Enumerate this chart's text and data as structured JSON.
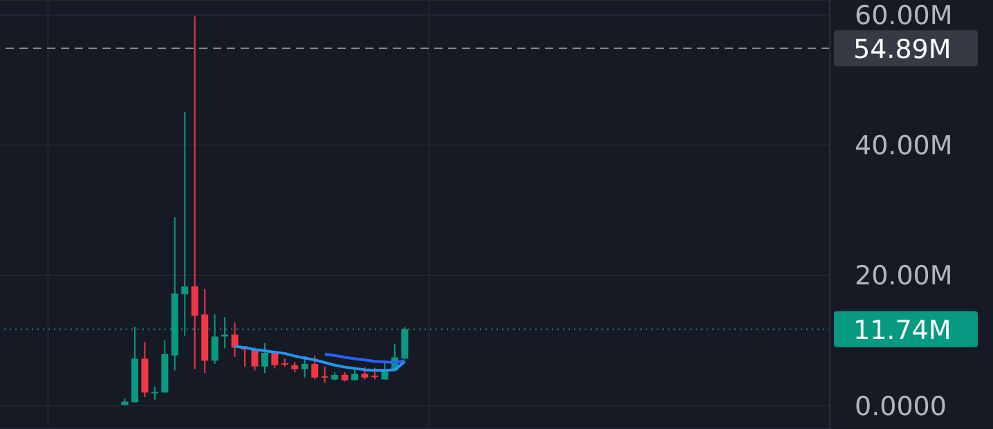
{
  "chart_data": {
    "type": "candlestick",
    "categories": [
      null,
      null,
      null,
      null,
      null,
      null,
      null,
      null,
      null,
      null,
      null,
      null,
      null,
      null,
      null,
      null,
      null,
      null,
      null,
      null,
      null,
      null,
      null,
      null,
      null,
      null,
      null,
      null,
      null,
      null,
      null,
      null,
      null,
      null,
      null,
      null,
      null,
      null,
      null,
      null,
      null,
      null,
      null,
      null,
      null,
      null,
      null,
      null,
      null,
      null,
      null,
      null,
      null,
      null,
      null,
      null,
      null,
      null,
      null,
      null,
      null,
      null,
      null,
      null,
      null,
      null,
      null,
      null,
      null,
      null,
      null,
      null,
      null,
      null,
      null,
      null,
      null,
      null,
      null,
      null,
      null,
      null,
      null
    ],
    "ohlc": [
      null,
      null,
      null,
      null,
      null,
      null,
      null,
      null,
      null,
      null,
      null,
      null,
      [
        0.1,
        1.1,
        0,
        0.6
      ],
      [
        0.5,
        12.1,
        0.5,
        7.2
      ],
      [
        7.2,
        9.8,
        1.3,
        2.0
      ],
      [
        2.0,
        2.9,
        0.9,
        2.1
      ],
      [
        2.0,
        10.0,
        2.0,
        7.9
      ],
      [
        7.7,
        28.9,
        5.4,
        17.2
      ],
      [
        17.1,
        45.1,
        10.7,
        18.3
      ],
      [
        18.3,
        59.8,
        5.6,
        13.8
      ],
      [
        14.0,
        17.9,
        5.0,
        6.9
      ],
      [
        6.9,
        14.0,
        6.4,
        10.6
      ],
      [
        10.6,
        13.6,
        8.8,
        10.9
      ],
      [
        10.9,
        12.8,
        7.5,
        8.9
      ],
      [
        9.1,
        9.1,
        6.0,
        8.6
      ],
      [
        8.7,
        8.9,
        5.4,
        6.0
      ],
      [
        6.0,
        9.6,
        5.0,
        8.1
      ],
      [
        8.1,
        8.1,
        5.7,
        6.2
      ],
      [
        6.5,
        7.2,
        6.0,
        6.3
      ],
      [
        6.2,
        6.7,
        5.1,
        5.6
      ],
      [
        5.6,
        7.6,
        4.3,
        6.4
      ],
      [
        6.4,
        7.7,
        4.0,
        4.3
      ],
      [
        4.5,
        6.0,
        3.5,
        4.4
      ],
      [
        4.0,
        5.1,
        3.9,
        4.7
      ],
      [
        4.7,
        5.1,
        3.7,
        3.9
      ],
      [
        3.9,
        5.9,
        3.9,
        4.9
      ],
      [
        4.9,
        5.9,
        4.0,
        4.3
      ],
      [
        4.6,
        5.8,
        4.0,
        4.4
      ],
      [
        4.0,
        6.6,
        4.0,
        5.6
      ],
      [
        5.4,
        9.5,
        5.4,
        7.4
      ],
      [
        7.2,
        12.1,
        7.2,
        11.74
      ],
      null,
      null,
      null,
      null,
      null,
      null,
      null,
      null,
      null,
      null,
      null,
      null,
      null,
      null,
      null,
      null,
      null,
      null,
      null,
      null,
      null,
      null,
      null,
      null,
      null,
      null,
      null,
      null,
      null,
      null,
      null,
      null,
      null,
      null,
      null,
      null,
      null,
      null,
      null,
      null,
      null,
      null
    ],
    "colors": [
      null,
      null,
      null,
      null,
      null,
      null,
      null,
      null,
      null,
      null,
      null,
      null,
      "#089981",
      "#089981",
      "#f23645",
      "#089981",
      "#089981",
      "#089981",
      "#089981",
      "#f23645",
      "#f23645",
      "#089981",
      "#089981",
      "#f23645",
      "#f23645",
      "#f23645",
      "#089981",
      "#f23645",
      "#f23645",
      "#f23645",
      "#089981",
      "#f23645",
      "#f23645",
      "#089981",
      "#f23645",
      "#089981",
      "#f23645",
      "#f23645",
      "#089981",
      "#089981",
      "#089981",
      null,
      null,
      null,
      null,
      null,
      null,
      null,
      null,
      null,
      null,
      null,
      null,
      null,
      null,
      null,
      null,
      null,
      null,
      null,
      null,
      null,
      null,
      null,
      null,
      null,
      null,
      null,
      null,
      null,
      null,
      null,
      null,
      null,
      null,
      null,
      null,
      null,
      null,
      null,
      null,
      null,
      null
    ],
    "series": [
      {
        "type": "line",
        "color": "#2196f3",
        "values": [
          null,
          null,
          null,
          null,
          null,
          null,
          null,
          null,
          null,
          null,
          null,
          null,
          null,
          null,
          null,
          null,
          null,
          null,
          null,
          null,
          null,
          null,
          null,
          9.1,
          8.9,
          8.6,
          8.4,
          8.2,
          8.0,
          7.6,
          7.3,
          7.0,
          6.6,
          6.2,
          5.9,
          5.7,
          5.5,
          5.4,
          5.4,
          5.5,
          6.8,
          null,
          null,
          null,
          null,
          null,
          null,
          null,
          null,
          null,
          null,
          null,
          null,
          null,
          null,
          null,
          null,
          null,
          null,
          null,
          null,
          null,
          null,
          null,
          null,
          null,
          null,
          null,
          null,
          null,
          null,
          null,
          null,
          null,
          null,
          null,
          null,
          null,
          null,
          null,
          null,
          null,
          null
        ]
      },
      {
        "type": "line",
        "color": "#2962ff",
        "values": [
          null,
          null,
          null,
          null,
          null,
          null,
          null,
          null,
          null,
          null,
          null,
          null,
          null,
          null,
          null,
          null,
          null,
          null,
          null,
          null,
          null,
          null,
          null,
          null,
          null,
          null,
          null,
          null,
          null,
          null,
          null,
          null,
          7.9,
          7.7,
          7.4,
          7.2,
          7.0,
          6.8,
          6.7,
          6.6,
          6.9,
          null,
          null,
          null,
          null,
          null,
          null,
          null,
          null,
          null,
          null,
          null,
          null,
          null,
          null,
          null,
          null,
          null,
          null,
          null,
          null,
          null,
          null,
          null,
          null,
          null,
          null,
          null,
          null,
          null,
          null,
          null,
          null,
          null,
          null,
          null,
          null,
          null,
          null,
          null,
          null,
          null,
          null
        ]
      }
    ],
    "ylim": [
      -3.6,
      62.3
    ],
    "yticks": [
      {
        "value": 0,
        "label": "0.0000"
      },
      {
        "value": 20,
        "label": "20.00M"
      },
      {
        "value": 40,
        "label": "40.00M"
      },
      {
        "value": 60,
        "label": "60.00M"
      }
    ],
    "ref_lines": [
      {
        "axis": "y",
        "value": 54.89,
        "label": "54.89M",
        "color": "#9598a1",
        "line_style": "dashed"
      },
      {
        "axis": "y",
        "value": 11.74,
        "label": "11.74M",
        "color": "#089981",
        "line_style": "dotted"
      }
    ],
    "grid": true,
    "tick_labels": "y"
  }
}
